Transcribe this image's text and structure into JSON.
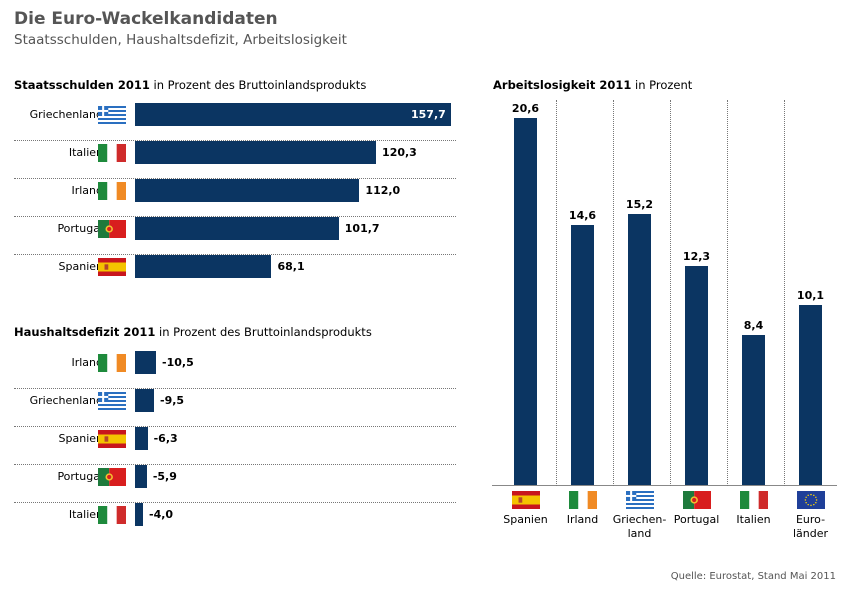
{
  "header": {
    "title": "Die Euro-Wackelkandidaten",
    "subtitle": "Staatsschulden, Haushaltsdefizit, Arbeitslosigkeit"
  },
  "colors": {
    "bar": "#0b3562",
    "title": "#555555"
  },
  "chart_data": [
    {
      "type": "bar",
      "orientation": "horizontal",
      "title_bold": "Staatsschulden 2011",
      "title_rest": " in Prozent des Bruttoinlandsprodukts",
      "categories": [
        "Griechenland",
        "Italien",
        "Irland",
        "Portugal",
        "Spanien"
      ],
      "flags": [
        "greece-flag-icon",
        "italy-flag-icon",
        "ireland-flag-icon",
        "portugal-flag-icon",
        "spain-flag-icon"
      ],
      "values": [
        157.7,
        120.3,
        112.0,
        101.7,
        68.1
      ],
      "labels": [
        "157,7",
        "120,3",
        "112,0",
        "101,7",
        "68,1"
      ],
      "xlim": [
        0,
        157.7
      ],
      "grid": false
    },
    {
      "type": "bar",
      "orientation": "horizontal",
      "title_bold": "Haushaltsdefizit 2011",
      "title_rest": " in Prozent des Bruttoinlandsprodukts",
      "categories": [
        "Irland",
        "Griechenland",
        "Spanien",
        "Portugal",
        "Italien"
      ],
      "flags": [
        "ireland-flag-icon",
        "greece-flag-icon",
        "spain-flag-icon",
        "portugal-flag-icon",
        "italy-flag-icon"
      ],
      "values": [
        -10.5,
        -9.5,
        -6.3,
        -5.9,
        -4.0
      ],
      "labels": [
        "-10,5",
        "-9,5",
        "-6,3",
        "-5,9",
        "-4,0"
      ],
      "xlim": [
        0,
        157.7
      ],
      "grid": false
    },
    {
      "type": "bar",
      "orientation": "vertical",
      "title_bold": "Arbeitslosigkeit 2011",
      "title_rest": " in Prozent",
      "categories": [
        "Spanien",
        "Irland",
        "Griechen-\nland",
        "Portugal",
        "Italien",
        "Euro-\nländer"
      ],
      "flags": [
        "spain-flag-icon",
        "ireland-flag-icon",
        "greece-flag-icon",
        "portugal-flag-icon",
        "italy-flag-icon",
        "eu-flag-icon"
      ],
      "values": [
        20.6,
        14.6,
        15.2,
        12.3,
        8.4,
        10.1
      ],
      "labels": [
        "20,6",
        "14,6",
        "15,2",
        "12,3",
        "8,4",
        "10,1"
      ],
      "ylim": [
        0,
        20.6
      ],
      "grid": true
    }
  ],
  "footer": {
    "source": "Quelle: Eurostat, Stand Mai 2011"
  }
}
